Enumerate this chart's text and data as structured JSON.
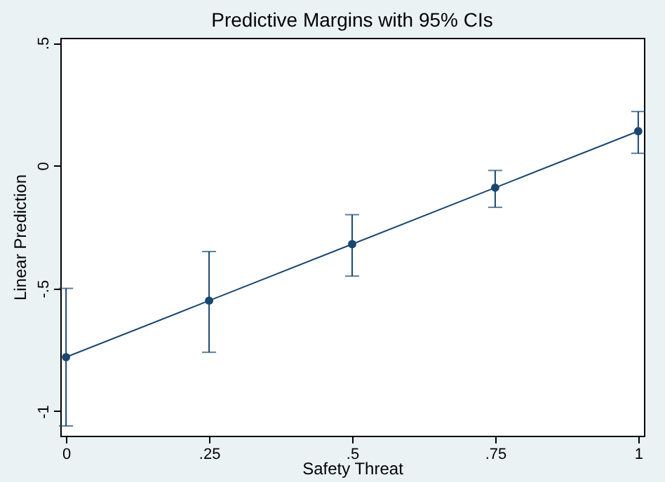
{
  "chart_data": {
    "type": "line",
    "title": "Predictive Margins with 95% CIs",
    "xlabel": "Safety Threat",
    "ylabel": "Linear Prediction",
    "x": [
      0,
      0.25,
      0.5,
      0.75,
      1
    ],
    "series": [
      {
        "color": "#1a476f",
        "values": [
          -0.78,
          -0.55,
          -0.32,
          -0.09,
          0.14
        ],
        "errors": [
          [
            -1.06,
            -0.5
          ],
          [
            -0.76,
            -0.35
          ],
          [
            -0.45,
            -0.2
          ],
          [
            -0.17,
            -0.02
          ],
          [
            0.05,
            0.22
          ]
        ]
      }
    ],
    "marker": "circle",
    "line_style": "solid",
    "grid": false,
    "xlim": [
      -0.01,
      1.01
    ],
    "ylim": [
      -1.1,
      0.52
    ],
    "xticks": [
      0,
      {
        "value": 0.25,
        "label": ".25"
      },
      {
        "value": 0.5,
        "label": ".5"
      },
      {
        "value": 0.75,
        "label": ".75"
      },
      1
    ],
    "yticks": [
      {
        "value": -1,
        "label": "-1"
      },
      {
        "value": -0.5,
        "label": "-.5"
      },
      0,
      {
        "value": 0.5,
        "label": ".5"
      }
    ]
  }
}
